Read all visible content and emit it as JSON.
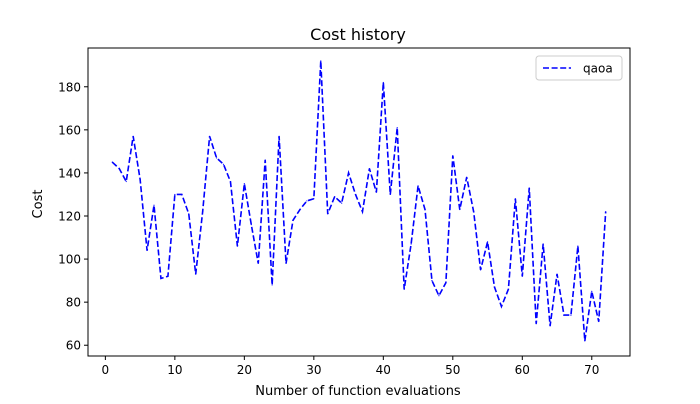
{
  "chart_data": {
    "type": "line",
    "title": "Cost history",
    "xlabel": "Number of function evaluations",
    "ylabel": "Cost",
    "xlim": [
      -2.5,
      75.5
    ],
    "ylim": [
      55,
      198
    ],
    "xticks": [
      0,
      10,
      20,
      30,
      40,
      50,
      60,
      70
    ],
    "yticks": [
      60,
      80,
      100,
      120,
      140,
      160,
      180
    ],
    "grid": false,
    "legend_position": "top-right",
    "series": [
      {
        "name": "qaoa",
        "color": "#0000ff",
        "line_style": "dashed",
        "x": [
          1,
          2,
          3,
          4,
          5,
          6,
          7,
          8,
          9,
          10,
          11,
          12,
          13,
          14,
          15,
          16,
          17,
          18,
          19,
          20,
          21,
          22,
          23,
          24,
          25,
          26,
          27,
          28,
          29,
          30,
          31,
          32,
          33,
          34,
          35,
          36,
          37,
          38,
          39,
          40,
          41,
          42,
          43,
          44,
          45,
          46,
          47,
          48,
          49,
          50,
          51,
          52,
          53,
          54,
          55,
          56,
          57,
          58,
          59,
          60,
          61,
          62,
          63,
          64,
          65,
          66,
          67,
          68,
          69,
          70,
          71,
          72
        ],
        "y": [
          145,
          142,
          136,
          157,
          137,
          104,
          125,
          91,
          92,
          130,
          130,
          121,
          93,
          122,
          157,
          147,
          144,
          136,
          106,
          135,
          116,
          98,
          146,
          88,
          157,
          98,
          118,
          123,
          127,
          128,
          192,
          121,
          129,
          126,
          140,
          130,
          122,
          142,
          131,
          182,
          130,
          161,
          86,
          107,
          134,
          123,
          90,
          83,
          89,
          148,
          123,
          138,
          122,
          95,
          108,
          87,
          78,
          86,
          128,
          92,
          133,
          70,
          107,
          69,
          93,
          74,
          74,
          106,
          62,
          85,
          71,
          122
        ]
      }
    ]
  }
}
